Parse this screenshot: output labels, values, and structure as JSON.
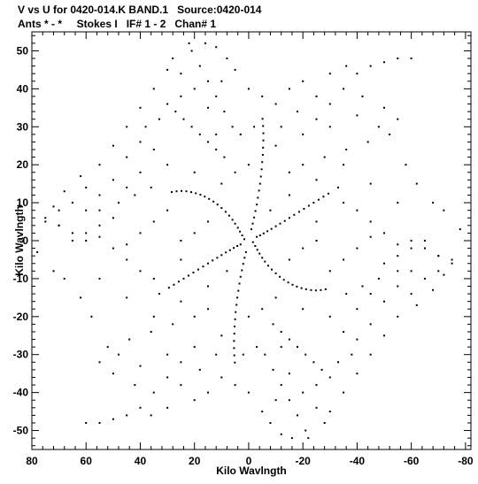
{
  "header": {
    "line1": "V vs U for 0420-014.K BAND.1   Source:0420-014",
    "line2": "Ants * - *     Stokes I   IF# 1 - 2   Chan# 1"
  },
  "chart_data": {
    "type": "scatter",
    "title": "V vs U for 0420-014.K BAND.1   Source:0420-014",
    "subtitle": "Ants * - *     Stokes I   IF# 1 - 2   Chan# 1",
    "xlabel": "Kilo Wavlngth",
    "ylabel": "Kilo Wavlngth",
    "xlim": [
      80,
      -82
    ],
    "ylim": [
      -55,
      55
    ],
    "x_ticks": [
      80,
      60,
      40,
      20,
      0,
      -20,
      -40,
      -60,
      -80
    ],
    "y_ticks": [
      50,
      40,
      30,
      20,
      10,
      0,
      -10,
      -20,
      -30,
      -40,
      -50
    ],
    "x_tick_labels": [
      "80",
      "60",
      "40",
      "20",
      "0",
      "-20",
      "-40",
      "-60",
      "-80"
    ],
    "y_tick_labels": [
      "50",
      "40",
      "30",
      "20",
      "10",
      "0",
      "-10",
      "-20",
      "-30",
      "-40",
      "-50"
    ],
    "grid": false,
    "marker_color": "#000000",
    "series": [
      {
        "description": "uv-coverage arm points (point-symmetric pairs)",
        "points": [
          [
            1.6,
            0.4
          ],
          [
            2.4,
            1.4
          ],
          [
            3.2,
            2.4
          ],
          [
            4.0,
            3.4
          ],
          [
            5.0,
            4.5
          ],
          [
            6.0,
            5.5
          ],
          [
            7.2,
            6.6
          ],
          [
            8.5,
            7.6
          ],
          [
            10.0,
            8.6
          ],
          [
            11.5,
            9.5
          ],
          [
            13.0,
            10.3
          ],
          [
            14.6,
            11.0
          ],
          [
            16.2,
            11.6
          ],
          [
            17.8,
            12.1
          ],
          [
            19.5,
            12.5
          ],
          [
            21.2,
            12.8
          ],
          [
            23.0,
            13.0
          ],
          [
            24.8,
            13.1
          ],
          [
            26.6,
            13.0
          ],
          [
            28.4,
            12.8
          ],
          [
            -3.0,
            1.0
          ],
          [
            -4.2,
            1.4
          ],
          [
            -5.5,
            1.9
          ],
          [
            -6.9,
            2.5
          ],
          [
            -8.4,
            3.1
          ],
          [
            -10.0,
            3.8
          ],
          [
            -11.6,
            4.5
          ],
          [
            -13.3,
            5.2
          ],
          [
            -15.0,
            6.0
          ],
          [
            -16.8,
            6.8
          ],
          [
            -18.6,
            7.6
          ],
          [
            -20.4,
            8.4
          ],
          [
            -22.2,
            9.2
          ],
          [
            -24.0,
            10.0
          ],
          [
            -25.8,
            10.8
          ],
          [
            -27.6,
            11.6
          ],
          [
            -29.4,
            12.4
          ],
          [
            -1.0,
            3.0
          ],
          [
            -1.5,
            4.5
          ],
          [
            -2.0,
            6.1
          ],
          [
            -2.5,
            7.8
          ],
          [
            -3.0,
            9.5
          ],
          [
            -3.4,
            11.3
          ],
          [
            -3.8,
            13.2
          ],
          [
            -4.2,
            15.0
          ],
          [
            -4.5,
            16.9
          ],
          [
            -4.8,
            18.8
          ],
          [
            -5.0,
            20.7
          ],
          [
            -5.2,
            22.6
          ],
          [
            -5.3,
            24.5
          ],
          [
            -5.4,
            26.4
          ],
          [
            -5.4,
            28.3
          ],
          [
            -5.3,
            30.2
          ],
          [
            -5.1,
            32.1
          ],
          [
            9.0,
            22.0
          ],
          [
            12.0,
            24.0
          ],
          [
            15.0,
            26.0
          ],
          [
            18.0,
            28.0
          ],
          [
            21.0,
            30.0
          ],
          [
            24.0,
            32.0
          ],
          [
            27.0,
            34.0
          ],
          [
            30.0,
            36.0
          ],
          [
            6.0,
            30.0
          ],
          [
            9.0,
            34.0
          ],
          [
            12.0,
            38.0
          ],
          [
            15.0,
            42.0
          ],
          [
            18.0,
            46.0
          ],
          [
            21.0,
            50.0
          ],
          [
            30.0,
            45.0
          ],
          [
            35.0,
            40.0
          ],
          [
            40.0,
            35.0
          ],
          [
            45.0,
            30.0
          ],
          [
            50.0,
            25.0
          ],
          [
            55.0,
            20.0
          ],
          [
            -20.0,
            28.0
          ],
          [
            -25.0,
            32.0
          ],
          [
            -30.0,
            36.0
          ],
          [
            -35.0,
            40.0
          ],
          [
            -40.0,
            44.0
          ],
          [
            -45.0,
            46.0
          ],
          [
            -50.0,
            47.0
          ],
          [
            -55.0,
            48.0
          ],
          [
            -60.0,
            48.0
          ],
          [
            -20.0,
            20.0
          ],
          [
            -28.0,
            22.0
          ],
          [
            -36.0,
            24.0
          ],
          [
            -44.0,
            26.0
          ],
          [
            -52.0,
            28.0
          ],
          [
            -40.0,
            33.0
          ],
          [
            -48.0,
            30.0
          ],
          [
            60.0,
            14.0
          ],
          [
            65.0,
            10.0
          ],
          [
            70.0,
            8.0
          ],
          [
            75.0,
            5.0
          ],
          [
            50.0,
            16.0
          ],
          [
            55.0,
            12.0
          ],
          [
            60.0,
            8.0
          ],
          [
            40.0,
            18.0
          ],
          [
            45.0,
            14.0
          ],
          [
            -60.0,
            0.0
          ],
          [
            -65.0,
            -2.0
          ],
          [
            -70.0,
            -4.0
          ],
          [
            -75.0,
            -6.0
          ],
          [
            -50.0,
            2.0
          ],
          [
            -55.0,
            -1.0
          ],
          [
            -45.0,
            5.0
          ],
          [
            -40.0,
            8.0
          ],
          [
            -35.0,
            10.0
          ],
          [
            20.0,
            40.0
          ],
          [
            25.0,
            44.0
          ],
          [
            28.0,
            48.0
          ],
          [
            15.0,
            35.0
          ],
          [
            10.0,
            42.0
          ],
          [
            5.0,
            45.0
          ],
          [
            0.0,
            40.0
          ],
          [
            -5.0,
            38.0
          ],
          [
            -10.0,
            36.0
          ],
          [
            -15.0,
            40.0
          ],
          [
            -20.0,
            42.0
          ],
          [
            -25.0,
            38.0
          ],
          [
            -30.0,
            30.0
          ],
          [
            -10.0,
            25.0
          ],
          [
            -15.0,
            18.0
          ],
          [
            -25.0,
            16.0
          ],
          [
            -33.0,
            14.0
          ],
          [
            0.0,
            20.0
          ],
          [
            5.0,
            18.0
          ],
          [
            10.0,
            15.0
          ],
          [
            20.0,
            18.0
          ],
          [
            30.0,
            20.0
          ],
          [
            35.0,
            24.0
          ],
          [
            40.0,
            26.0
          ],
          [
            45.0,
            22.0
          ],
          [
            30.0,
            8.0
          ],
          [
            35.0,
            5.0
          ],
          [
            40.0,
            2.0
          ],
          [
            45.0,
            -1.0
          ],
          [
            50.0,
            6.0
          ],
          [
            55.0,
            4.0
          ],
          [
            60.0,
            2.0
          ],
          [
            65.0,
            0.0
          ],
          [
            70.0,
            4.0
          ],
          [
            -35.0,
            20.0
          ],
          [
            -45.0,
            15.0
          ],
          [
            -55.0,
            10.0
          ],
          [
            -25.0,
            5.0
          ],
          [
            -15.0,
            12.0
          ],
          [
            -8.0,
            8.0
          ],
          [
            15.0,
            5.0
          ],
          [
            20.0,
            2.0
          ],
          [
            25.0,
            0.0
          ],
          [
            12.0,
            28.0
          ],
          [
            3.0,
            28.0
          ],
          [
            -2.0,
            30.0
          ],
          [
            -12.0,
            30.0
          ],
          [
            -18.0,
            34.0
          ],
          [
            8.0,
            48.0
          ],
          [
            12.0,
            51.0
          ],
          [
            16.0,
            52.0
          ],
          [
            22.0,
            52.0
          ],
          [
            25.0,
            38.0
          ],
          [
            33.0,
            32.0
          ],
          [
            38.0,
            30.0
          ],
          [
            -30.0,
            44.0
          ],
          [
            -36.0,
            46.0
          ],
          [
            -42.0,
            38.0
          ],
          [
            -50.0,
            35.0
          ],
          [
            -55.0,
            32.0
          ],
          [
            -58.0,
            20.0
          ],
          [
            -62.0,
            15.0
          ],
          [
            -68.0,
            10.0
          ],
          [
            -72.0,
            8.0
          ],
          [
            -78.0,
            3.0
          ],
          [
            72.0,
            9.0
          ],
          [
            68.0,
            13.0
          ],
          [
            62.0,
            17.0
          ],
          [
            55.0,
            8.0
          ],
          [
            48.0,
            10.0
          ],
          [
            42.0,
            12.0
          ],
          [
            36.0,
            14.0
          ]
        ]
      }
    ]
  }
}
